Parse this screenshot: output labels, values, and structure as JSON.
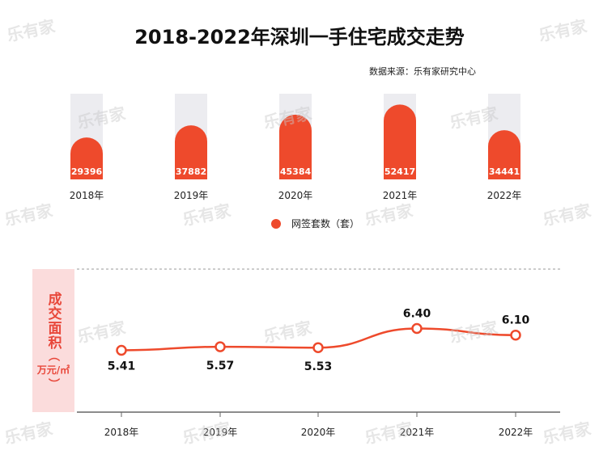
{
  "title": "2018-2022年深圳一手住宅成交走势",
  "source": "数据来源：乐有家研究中心",
  "watermark": "乐有家",
  "colors": {
    "accent": "#ee4a2c",
    "track": "#ececf0",
    "label_bg": "#fbdcdc"
  },
  "chart_data": [
    {
      "type": "bar",
      "title": "2018-2022年深圳一手住宅成交走势",
      "categories": [
        "2018年",
        "2019年",
        "2020年",
        "2021年",
        "2022年"
      ],
      "values": [
        29396,
        37882,
        45384,
        52417,
        34441
      ],
      "legend": "网签套数（套）",
      "legend_position": "bottom",
      "ylim": [
        0,
        60000
      ]
    },
    {
      "type": "line",
      "categories": [
        "2018年",
        "2019年",
        "2020年",
        "2021年",
        "2022年"
      ],
      "values": [
        5.41,
        5.57,
        5.53,
        6.4,
        6.1
      ],
      "labels": [
        "5.41",
        "5.57",
        "5.53",
        "6.40",
        "6.10"
      ],
      "ylabel_main": "成交面积",
      "ylabel_open": "（",
      "ylabel_unit": "万元/㎡",
      "ylabel_close": "）",
      "ylim": [
        2.6,
        9.1
      ]
    }
  ]
}
